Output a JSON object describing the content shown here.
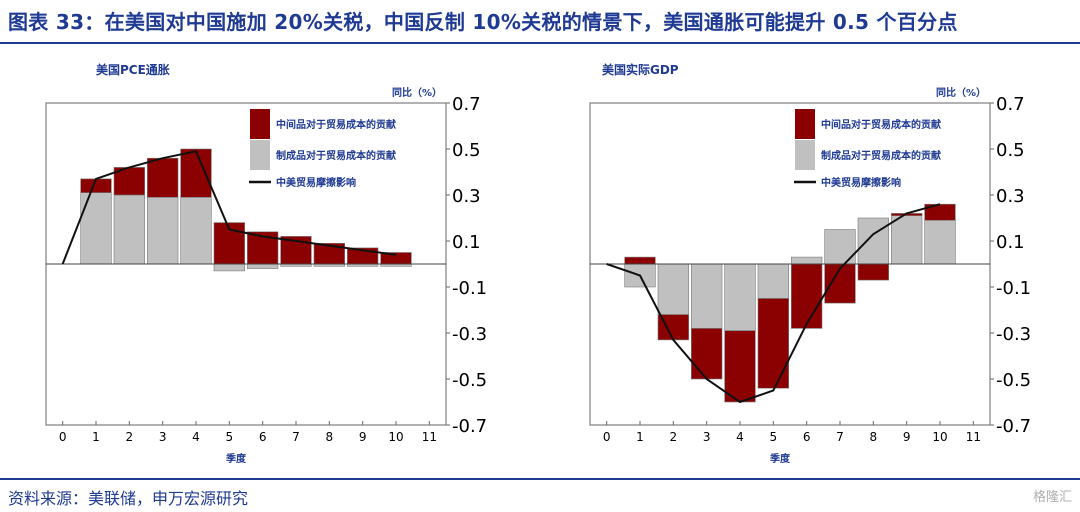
{
  "title": "图表 33：在美国对中国施加 20%关税，中国反制 10%关税的情景下，美国通胀可能提升 0.5 个百分点",
  "source": "资料来源：美联储，申万宏源研究",
  "watermark": "格隆汇",
  "colors": {
    "intermediate": "#8b0000",
    "finished": "#c0c0c0",
    "line": "#111111",
    "text": "#1f3a93"
  },
  "chart_data": [
    {
      "type": "bar",
      "title": "美国PCE通胀",
      "ylabel": "同比（%）",
      "xlabel": "季度",
      "x": [
        0,
        1,
        2,
        3,
        4,
        5,
        6,
        7,
        8,
        9,
        10,
        11
      ],
      "ylim": [
        -0.7,
        0.7
      ],
      "yticks": [
        "0.7",
        "0.5",
        "0.3",
        "0.1",
        "-0.1",
        "-0.3",
        "-0.5",
        "-0.7"
      ],
      "legend": [
        "中间品对于贸易成本的贡献",
        "制成品对于贸易成本的贡献",
        "中美贸易摩擦影响"
      ],
      "series": [
        {
          "name": "中间品对于贸易成本的贡献",
          "x": [
            1,
            2,
            3,
            4,
            5,
            6,
            7,
            8,
            9,
            10
          ],
          "values": [
            0.06,
            0.12,
            0.17,
            0.21,
            0.18,
            0.14,
            0.12,
            0.09,
            0.07,
            0.05
          ]
        },
        {
          "name": "制成品对于贸易成本的贡献",
          "x": [
            1,
            2,
            3,
            4,
            5,
            6,
            7,
            8,
            9,
            10
          ],
          "values": [
            0.31,
            0.3,
            0.29,
            0.29,
            -0.03,
            -0.02,
            -0.01,
            -0.01,
            -0.01,
            -0.01
          ]
        },
        {
          "name": "中美贸易摩擦影响",
          "x": [
            0,
            1,
            2,
            3,
            4,
            5,
            6,
            7,
            8,
            9,
            10
          ],
          "values": [
            0,
            0.37,
            0.42,
            0.46,
            0.49,
            0.15,
            0.12,
            0.1,
            0.08,
            0.06,
            0.04
          ]
        }
      ]
    },
    {
      "type": "bar",
      "title": "美国实际GDP",
      "ylabel": "同比（%）",
      "xlabel": "季度",
      "x": [
        0,
        1,
        2,
        3,
        4,
        5,
        6,
        7,
        8,
        9,
        10,
        11
      ],
      "ylim": [
        -0.7,
        0.7
      ],
      "yticks": [
        "0.7",
        "0.5",
        "0.3",
        "0.1",
        "-0.1",
        "-0.3",
        "-0.5",
        "-0.7"
      ],
      "legend": [
        "中间品对于贸易成本的贡献",
        "制成品对于贸易成本的贡献",
        "中美贸易摩擦影响"
      ],
      "series": [
        {
          "name": "中间品对于贸易成本的贡献",
          "x": [
            1,
            2,
            3,
            4,
            5,
            6,
            7,
            8,
            9,
            10
          ],
          "values": [
            0.03,
            -0.11,
            -0.22,
            -0.31,
            -0.39,
            -0.28,
            -0.17,
            -0.07,
            0.01,
            0.07
          ]
        },
        {
          "name": "制成品对于贸易成本的贡献",
          "x": [
            1,
            2,
            3,
            4,
            5,
            6,
            7,
            8,
            9,
            10
          ],
          "values": [
            -0.1,
            -0.22,
            -0.28,
            -0.29,
            -0.15,
            0.03,
            0.15,
            0.2,
            0.21,
            0.19
          ]
        },
        {
          "name": "中美贸易摩擦影响",
          "x": [
            0,
            1,
            2,
            3,
            4,
            5,
            6,
            7,
            8,
            9,
            10
          ],
          "values": [
            0,
            -0.05,
            -0.33,
            -0.5,
            -0.6,
            -0.55,
            -0.26,
            -0.02,
            0.13,
            0.22,
            0.26
          ]
        }
      ]
    }
  ]
}
